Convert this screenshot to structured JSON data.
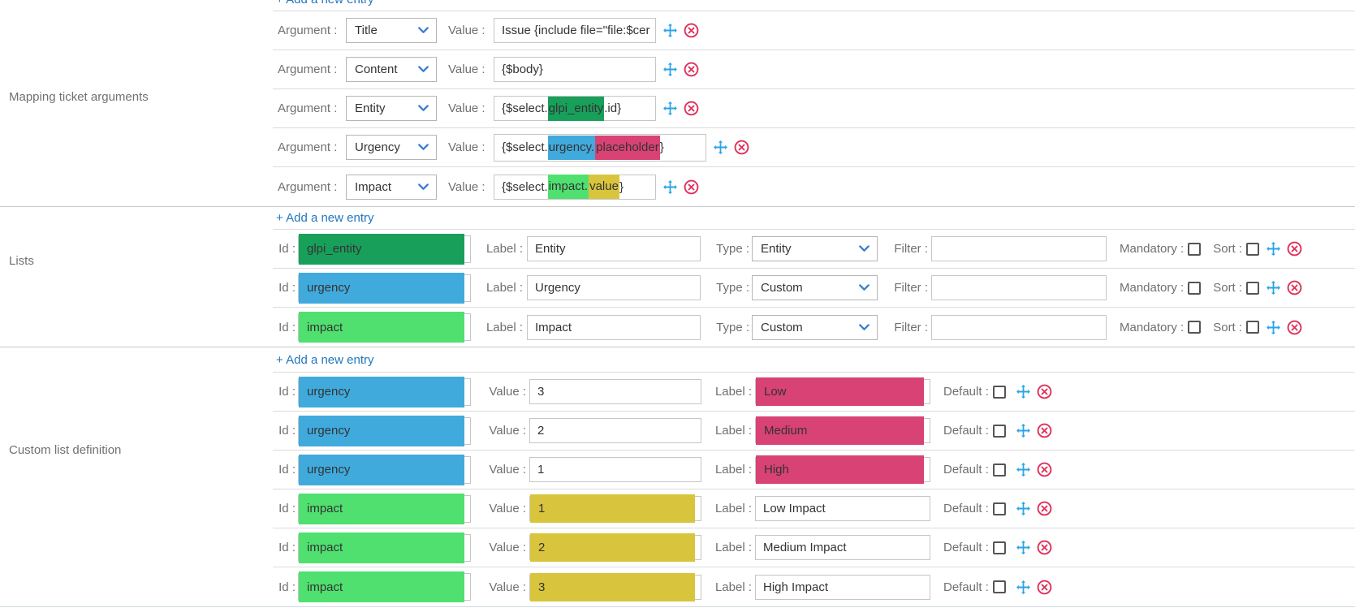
{
  "add_entry_label": "+ Add a new entry",
  "field_labels": {
    "argument": "Argument :",
    "value": "Value :",
    "id": "Id :",
    "label": "Label :",
    "type": "Type :",
    "filter": "Filter :",
    "mandatory": "Mandatory :",
    "sort": "Sort :",
    "default": "Default :"
  },
  "colors": {
    "green_dark": "#18a05b",
    "blue": "#41aadd",
    "green_light": "#4fe070",
    "yellow": "#d9c53d",
    "pink": "#d84274",
    "link": "#2276bd",
    "move_icon": "#2aa3e8",
    "delete_icon": "#e0305a"
  },
  "sections": {
    "mapping": {
      "title": "Mapping ticket arguments",
      "rows": [
        {
          "argument": "Title",
          "value_parts": [
            {
              "t": "Issue {include file=\"file:$cer"
            }
          ]
        },
        {
          "argument": "Content",
          "value_parts": [
            {
              "t": "{$body}"
            }
          ]
        },
        {
          "argument": "Entity",
          "value_parts": [
            {
              "t": "{$select."
            },
            {
              "t": "glpi_entity",
              "hl": "green_dark"
            },
            {
              "t": ".id}"
            }
          ]
        },
        {
          "argument": "Urgency",
          "wide": true,
          "value_parts": [
            {
              "t": "{$select."
            },
            {
              "t": "urgency.",
              "hl": "blue"
            },
            {
              "t": "placeholder",
              "hl": "pink"
            },
            {
              "t": "}"
            }
          ]
        },
        {
          "argument": "Impact",
          "value_parts": [
            {
              "t": "{$select."
            },
            {
              "t": "impact.",
              "hl": "green_light"
            },
            {
              "t": "value",
              "hl": "yellow"
            },
            {
              "t": "}"
            }
          ]
        }
      ]
    },
    "lists": {
      "title": "Lists",
      "rows": [
        {
          "id": "glpi_entity",
          "id_hl": "green_dark",
          "label": "Entity",
          "type": "Entity",
          "filter": "",
          "mandatory": false,
          "sort": false
        },
        {
          "id": "urgency",
          "id_hl": "blue",
          "label": "Urgency",
          "type": "Custom",
          "filter": "",
          "mandatory": false,
          "sort": false
        },
        {
          "id": "impact",
          "id_hl": "green_light",
          "label": "Impact",
          "type": "Custom",
          "filter": "",
          "mandatory": false,
          "sort": false
        }
      ]
    },
    "custom": {
      "title": "Custom list definition",
      "rows": [
        {
          "id": "urgency",
          "id_hl": "blue",
          "value": "3",
          "value_hl": null,
          "label": "Low",
          "label_hl": "pink",
          "default": false
        },
        {
          "id": "urgency",
          "id_hl": "blue",
          "value": "2",
          "value_hl": null,
          "label": "Medium",
          "label_hl": "pink",
          "default": false
        },
        {
          "id": "urgency",
          "id_hl": "blue",
          "value": "1",
          "value_hl": null,
          "label": "High",
          "label_hl": "pink",
          "default": false
        },
        {
          "id": "impact",
          "id_hl": "green_light",
          "value": "1",
          "value_hl": "yellow",
          "label": "Low Impact",
          "label_hl": null,
          "default": false
        },
        {
          "id": "impact",
          "id_hl": "green_light",
          "value": "2",
          "value_hl": "yellow",
          "label": "Medium Impact",
          "label_hl": null,
          "default": false
        },
        {
          "id": "impact",
          "id_hl": "green_light",
          "value": "3",
          "value_hl": "yellow",
          "label": "High Impact",
          "label_hl": null,
          "default": false
        }
      ]
    }
  }
}
